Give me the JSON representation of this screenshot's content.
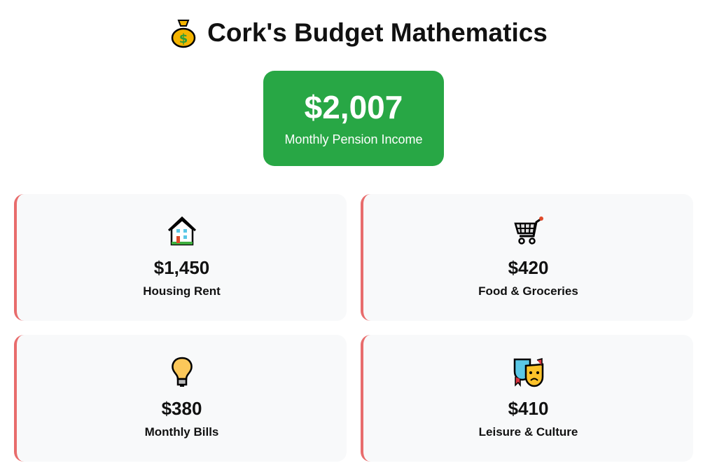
{
  "header": {
    "title": "Cork's Budget Mathematics",
    "icon": "money-bag-icon"
  },
  "income": {
    "amount": "$2,007",
    "label": "Monthly Pension Income",
    "color": "#28a745"
  },
  "expenses": [
    {
      "icon": "house-icon",
      "amount": "$1,450",
      "label": "Housing Rent"
    },
    {
      "icon": "shopping-cart-icon",
      "amount": "$420",
      "label": "Food & Groceries"
    },
    {
      "icon": "light-bulb-icon",
      "amount": "$380",
      "label": "Monthly Bills"
    },
    {
      "icon": "performing-arts-icon",
      "amount": "$410",
      "label": "Leisure & Culture"
    }
  ],
  "accent_color": "#e86c6c"
}
